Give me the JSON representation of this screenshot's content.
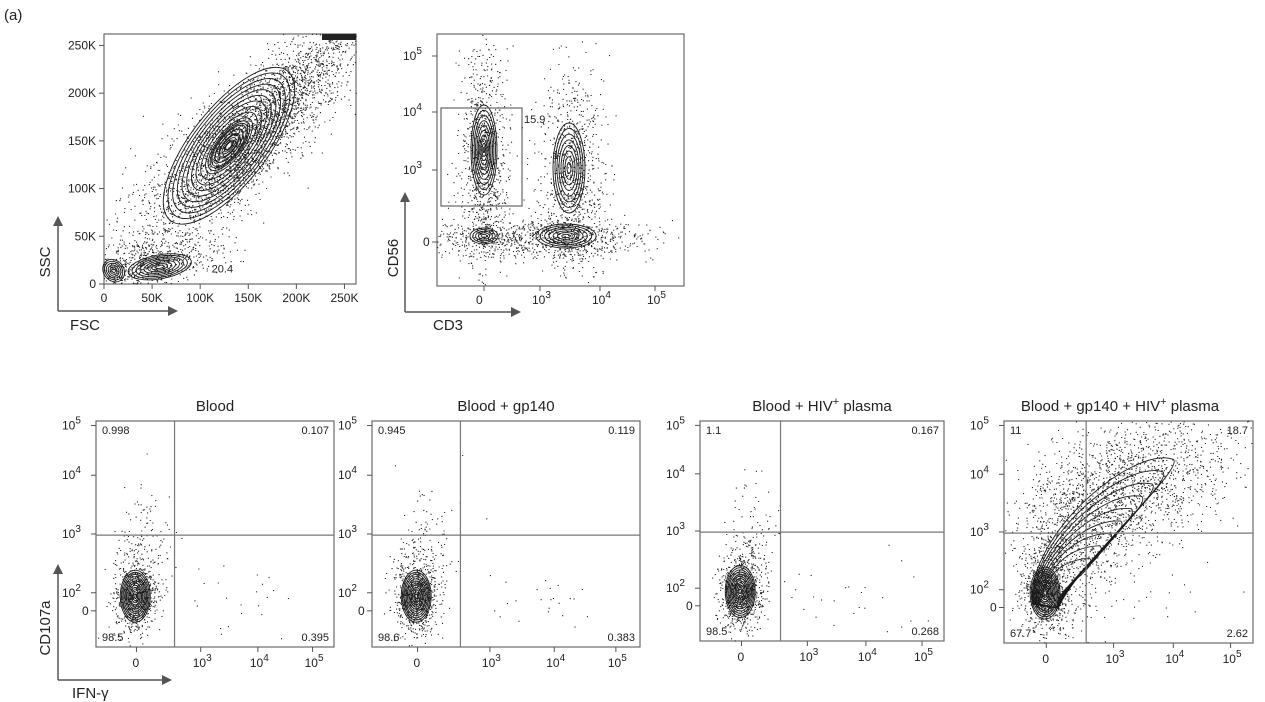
{
  "panel_label": "(a)",
  "colors": {
    "frame": "#6a6a6a",
    "contour": "#1a1a1a",
    "dots": "#222222"
  },
  "chart_data": [
    {
      "type": "scatter",
      "plot_kind": "flow-cytometry-contour",
      "xlabel": "FSC",
      "ylabel": "SSC",
      "x_ticks": [
        "0",
        "50K",
        "100K",
        "150K",
        "200K",
        "250K"
      ],
      "y_ticks": [
        "0",
        "50K",
        "100K",
        "150K",
        "200K",
        "250K"
      ],
      "xlim": [
        0,
        262144
      ],
      "ylim": [
        0,
        262144
      ],
      "gate": {
        "shape": "ellipse",
        "label": "20.4",
        "percent": 20.4
      }
    },
    {
      "type": "scatter",
      "plot_kind": "flow-cytometry-contour",
      "xlabel": "CD3",
      "ylabel": "CD56",
      "x_ticks": [
        "0",
        "10³",
        "10⁴",
        "10⁵"
      ],
      "y_ticks": [
        "0",
        "10³",
        "10⁴",
        "10⁵"
      ],
      "scale": "biexponential",
      "gate": {
        "shape": "rectangle",
        "label": "15.9",
        "percent": 15.9
      }
    },
    {
      "type": "scatter",
      "plot_kind": "flow-cytometry-contour-quadrant",
      "title": "Blood",
      "xlabel": "IFN-γ",
      "ylabel": "CD107a",
      "x_ticks": [
        "0",
        "10³",
        "10⁴",
        "10⁵"
      ],
      "y_ticks": [
        "0",
        "10²",
        "10³",
        "10⁴",
        "10⁵"
      ],
      "scale": "biexponential",
      "quadrants": {
        "upper_left": "0.998",
        "upper_right": "0.107",
        "lower_left": "98.5",
        "lower_right": "0.395"
      }
    },
    {
      "type": "scatter",
      "plot_kind": "flow-cytometry-contour-quadrant",
      "title": "Blood + gp140",
      "x_ticks": [
        "0",
        "10³",
        "10⁴",
        "10⁵"
      ],
      "y_ticks": [
        "0",
        "10²",
        "10³",
        "10⁴",
        "10⁵"
      ],
      "scale": "biexponential",
      "quadrants": {
        "upper_left": "0.945",
        "upper_right": "0.119",
        "lower_left": "98.6",
        "lower_right": "0.383"
      }
    },
    {
      "type": "scatter",
      "plot_kind": "flow-cytometry-contour-quadrant",
      "title": "Blood + HIV⁺ plasma",
      "x_ticks": [
        "0",
        "10³",
        "10⁴",
        "10⁵"
      ],
      "y_ticks": [
        "0",
        "10²",
        "10³",
        "10⁴",
        "10⁵"
      ],
      "scale": "biexponential",
      "quadrants": {
        "upper_left": "1.1",
        "upper_right": "0.167",
        "lower_left": "98.5",
        "lower_right": "0.268"
      }
    },
    {
      "type": "scatter",
      "plot_kind": "flow-cytometry-contour-quadrant",
      "title": "Blood + gp140 + HIV⁺ plasma",
      "x_ticks": [
        "0",
        "10³",
        "10⁴",
        "10⁵"
      ],
      "y_ticks": [
        "0",
        "10²",
        "10³",
        "10⁴",
        "10⁵"
      ],
      "scale": "biexponential",
      "quadrants": {
        "upper_left": "11",
        "upper_right": "18.7",
        "lower_left": "67.7",
        "lower_right": "2.62"
      }
    }
  ]
}
